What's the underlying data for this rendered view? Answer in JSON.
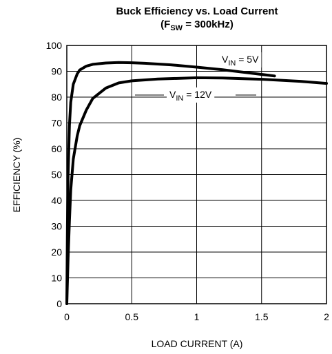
{
  "chart_data": {
    "type": "line",
    "title": "Buck Efficiency vs. Load Current",
    "subtitle": {
      "main": "(F",
      "sub": "SW",
      "rest": " = 300kHz)"
    },
    "xlabel": "LOAD CURRENT (A)",
    "ylabel": "EFFICIENCY (%)",
    "xlim": [
      0,
      2
    ],
    "ylim": [
      0,
      100
    ],
    "xticks": [
      0,
      0.5,
      1,
      1.5,
      2
    ],
    "xtick_labels": [
      "0",
      "0.5",
      "1",
      "1.5",
      "2"
    ],
    "yticks": [
      0,
      10,
      20,
      30,
      40,
      50,
      60,
      70,
      80,
      90,
      100
    ],
    "ytick_labels": [
      "0",
      "10",
      "20",
      "30",
      "40",
      "50",
      "60",
      "70",
      "80",
      "90",
      "100"
    ],
    "grid": true,
    "series": [
      {
        "label": {
          "main": "V",
          "sub": "IN",
          "rest": " = 5V"
        },
        "x": [
          0.0,
          0.005,
          0.01,
          0.02,
          0.03,
          0.05,
          0.08,
          0.1,
          0.15,
          0.2,
          0.3,
          0.4,
          0.5,
          0.6,
          0.8,
          1.0,
          1.2,
          1.4,
          1.6
        ],
        "y": [
          0,
          30,
          50,
          69,
          78,
          85,
          89,
          90.5,
          92,
          92.7,
          93.2,
          93.4,
          93.3,
          93.1,
          92.5,
          91.6,
          90.6,
          89.4,
          88.2
        ]
      },
      {
        "label": {
          "main": "V",
          "sub": "IN",
          "rest": " = 12V"
        },
        "x": [
          0.0,
          0.01,
          0.02,
          0.03,
          0.05,
          0.08,
          0.1,
          0.15,
          0.2,
          0.25,
          0.3,
          0.4,
          0.5,
          0.7,
          1.0,
          1.2,
          1.5,
          1.8,
          2.0
        ],
        "y": [
          0,
          18,
          32,
          44,
          56,
          65,
          69,
          75,
          79.5,
          81.5,
          83.5,
          85.5,
          86.3,
          87,
          87.5,
          87.4,
          86.9,
          86.1,
          85.3
        ]
      }
    ]
  }
}
